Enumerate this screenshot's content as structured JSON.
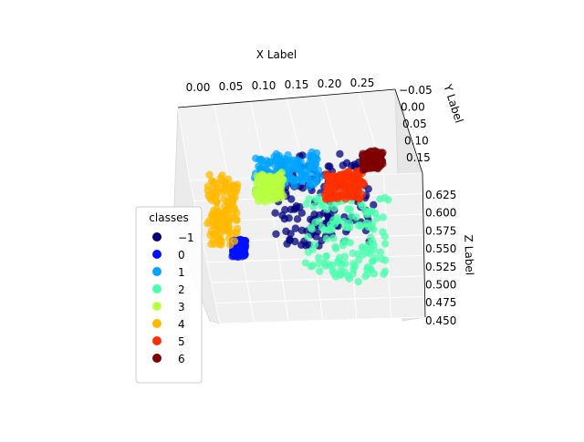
{
  "chart_data": {
    "type": "scatter",
    "projection": "3d",
    "xlabel": "X Label",
    "ylabel": "Y Label",
    "zlabel": "Z Label",
    "xlim": [
      -0.01,
      0.29
    ],
    "ylim": [
      -0.05,
      0.17
    ],
    "zlim": [
      0.45,
      0.625
    ],
    "x_ticks": [
      "0.00",
      "0.05",
      "0.10",
      "0.15",
      "0.20",
      "0.25"
    ],
    "y_ticks": [
      "−0.05",
      "0.00",
      "0.05",
      "0.10",
      "0.15"
    ],
    "z_ticks": [
      "0.625",
      "0.600",
      "0.575",
      "0.550",
      "0.525",
      "0.500",
      "0.475",
      "0.450"
    ],
    "grid": true,
    "legend": {
      "title": "classes",
      "placement": "lower-left",
      "entries": [
        {
          "label": "−1",
          "color": "#00007f"
        },
        {
          "label": "0",
          "color": "#0010ff"
        },
        {
          "label": "1",
          "color": "#00a4ff"
        },
        {
          "label": "2",
          "color": "#49ffad"
        },
        {
          "label": "3",
          "color": "#b7ff40"
        },
        {
          "label": "4",
          "color": "#ffb900"
        },
        {
          "label": "5",
          "color": "#ff3000"
        },
        {
          "label": "6",
          "color": "#7f0000"
        }
      ]
    },
    "series": [
      {
        "name": "−1",
        "color": "#00007f",
        "clusters": [
          {
            "x": [
              0.1,
              0.24
            ],
            "y": [
              0.03,
              0.13
            ],
            "z": [
              0.5,
              0.6
            ]
          }
        ]
      },
      {
        "name": "0",
        "color": "#0010ff",
        "clusters": [
          {
            "x": [
              0.04,
              0.06
            ],
            "y": [
              0.02,
              0.03
            ],
            "z": [
              0.48,
              0.5
            ]
          }
        ]
      },
      {
        "name": "1",
        "color": "#00a4ff",
        "clusters": [
          {
            "x": [
              0.05,
              0.15
            ],
            "y": [
              0.13,
              0.15
            ],
            "z": [
              0.58,
              0.62
            ]
          }
        ]
      },
      {
        "name": "2",
        "color": "#49ffad",
        "clusters": [
          {
            "x": [
              0.15,
              0.27
            ],
            "y": [
              0.02,
              0.1
            ],
            "z": [
              0.45,
              0.55
            ]
          }
        ]
      },
      {
        "name": "3",
        "color": "#b7ff40",
        "clusters": [
          {
            "x": [
              0.06,
              0.1
            ],
            "y": [
              0.09,
              0.12
            ],
            "z": [
              0.56,
              0.59
            ]
          }
        ]
      },
      {
        "name": "4",
        "color": "#ffb900",
        "clusters": [
          {
            "x": [
              0.0,
              0.04
            ],
            "y": [
              0.0,
              0.08
            ],
            "z": [
              0.5,
              0.58
            ]
          }
        ]
      },
      {
        "name": "5",
        "color": "#ff3000",
        "clusters": [
          {
            "x": [
              0.17,
              0.23
            ],
            "y": [
              0.06,
              0.09
            ],
            "z": [
              0.55,
              0.58
            ]
          }
        ]
      },
      {
        "name": "6",
        "color": "#7f0000",
        "clusters": [
          {
            "x": [
              0.22,
              0.25
            ],
            "y": [
              0.1,
              0.12
            ],
            "z": [
              0.59,
              0.61
            ]
          }
        ]
      }
    ]
  }
}
